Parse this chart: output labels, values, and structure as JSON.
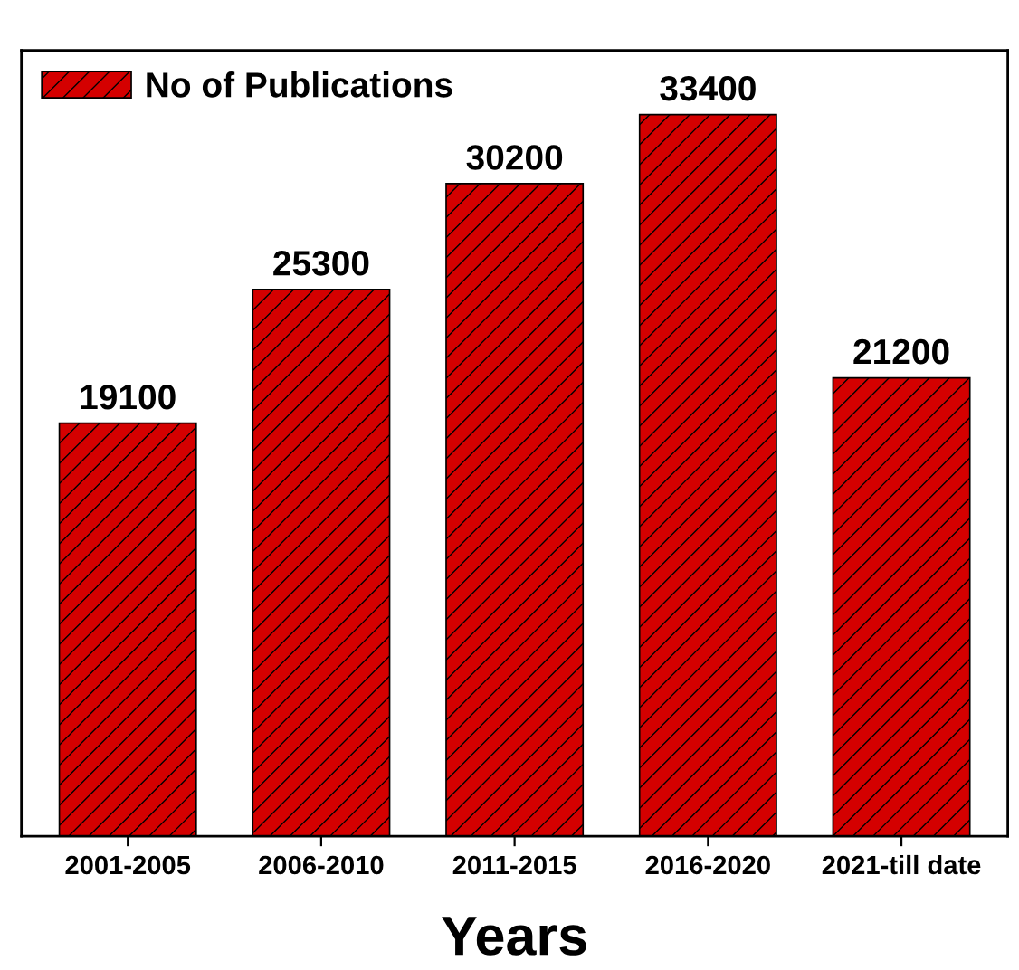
{
  "chart_data": {
    "type": "bar",
    "xlabel": "Years",
    "categories": [
      "2001-2005",
      "2006-2010",
      "2011-2015",
      "2016-2020",
      "2021-till date"
    ],
    "series": [
      {
        "name": "No of Publications",
        "color": "#d40000",
        "values": [
          19100,
          25300,
          30200,
          33400,
          21200
        ]
      }
    ],
    "data_labels": true,
    "legend": "top left",
    "grid": false
  }
}
